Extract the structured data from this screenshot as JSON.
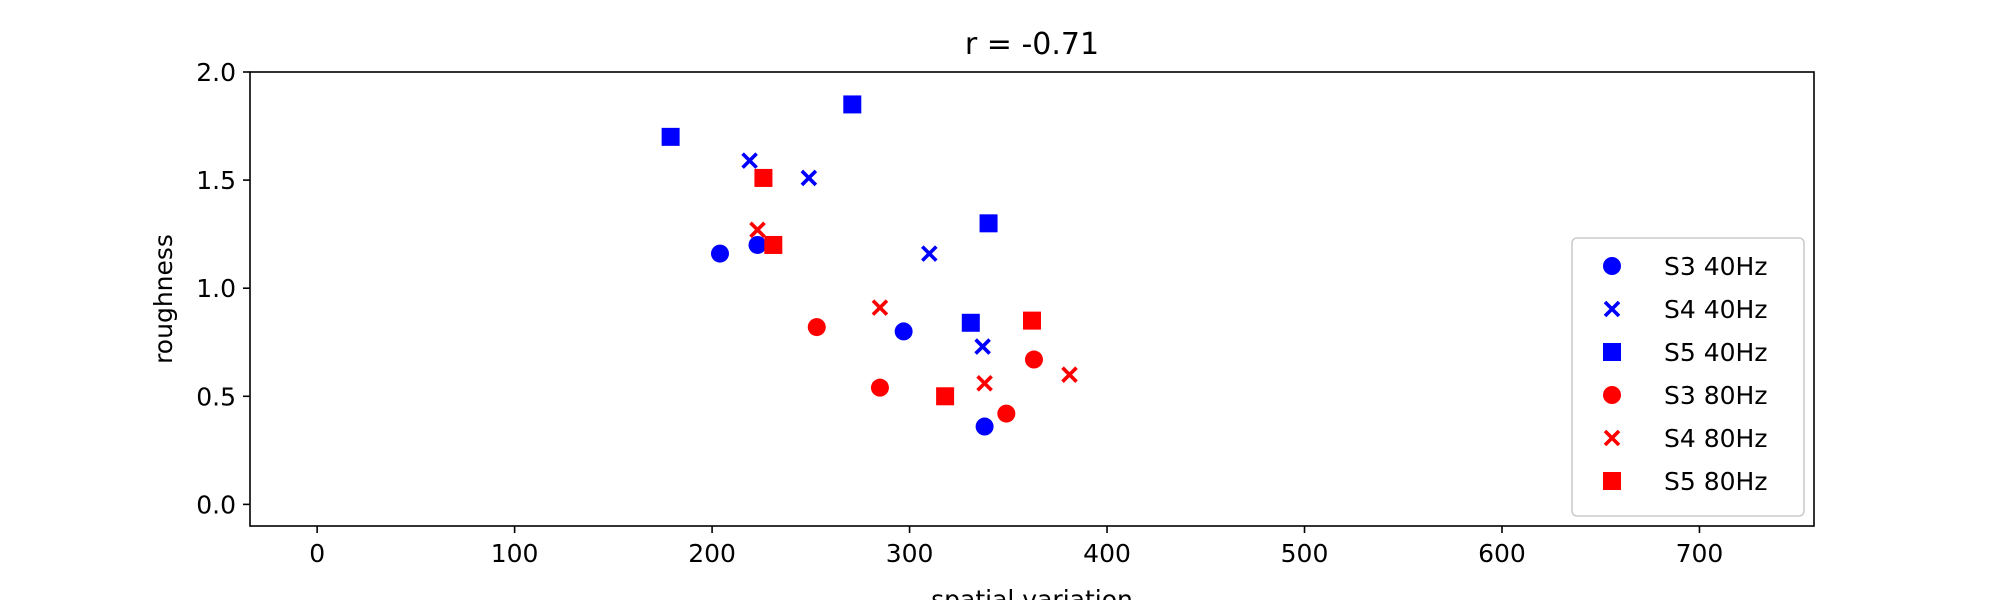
{
  "chart_data": {
    "type": "scatter",
    "title": "r = -0.71",
    "xlabel": "spatial variation",
    "ylabel": "roughness",
    "xlim": [
      -34,
      758
    ],
    "ylim": [
      -0.1,
      2.0
    ],
    "xticks": [
      0,
      100,
      200,
      300,
      400,
      500,
      600,
      700
    ],
    "yticks": [
      0.0,
      0.5,
      1.0,
      1.5,
      2.0
    ],
    "ytick_labels": [
      "0.0",
      "0.5",
      "1.0",
      "1.5",
      "2.0"
    ],
    "grid": false,
    "legend_position": "lower-right",
    "series": [
      {
        "name": "S3 40Hz",
        "marker": "circle",
        "color": "#0000ff",
        "points": [
          [
            204,
            1.16
          ],
          [
            223,
            1.2
          ],
          [
            297,
            0.8
          ],
          [
            338,
            0.36
          ]
        ]
      },
      {
        "name": "S4 40Hz",
        "marker": "x",
        "color": "#0000ff",
        "points": [
          [
            219,
            1.59
          ],
          [
            249,
            1.51
          ],
          [
            310,
            1.16
          ],
          [
            337,
            0.73
          ]
        ]
      },
      {
        "name": "S5 40Hz",
        "marker": "square",
        "color": "#0000ff",
        "points": [
          [
            179,
            1.7
          ],
          [
            271,
            1.85
          ],
          [
            340,
            1.3
          ],
          [
            331,
            0.84
          ]
        ]
      },
      {
        "name": "S3 80Hz",
        "marker": "circle",
        "color": "#ff0000",
        "points": [
          [
            253,
            0.82
          ],
          [
            285,
            0.54
          ],
          [
            349,
            0.42
          ],
          [
            363,
            0.67
          ]
        ]
      },
      {
        "name": "S4 80Hz",
        "marker": "x",
        "color": "#ff0000",
        "points": [
          [
            223,
            1.27
          ],
          [
            285,
            0.91
          ],
          [
            338,
            0.56
          ],
          [
            381,
            0.6
          ]
        ]
      },
      {
        "name": "S5 80Hz",
        "marker": "square",
        "color": "#ff0000",
        "points": [
          [
            226,
            1.51
          ],
          [
            231,
            1.2
          ],
          [
            362,
            0.85
          ],
          [
            318,
            0.5
          ]
        ]
      }
    ]
  }
}
